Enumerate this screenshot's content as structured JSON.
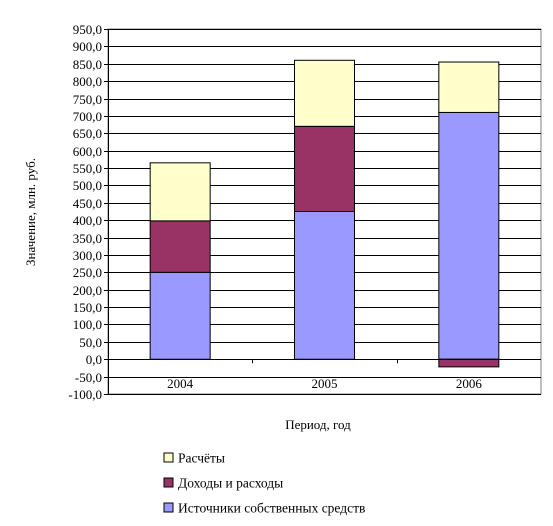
{
  "chart_data": {
    "type": "bar",
    "stacked": true,
    "title": "",
    "xlabel": "Период, год",
    "ylabel": "Значение, млн. руб.",
    "categories": [
      "2004",
      "2005",
      "2006"
    ],
    "ylim": [
      -100,
      950
    ],
    "ytick_step": 50,
    "yticks": [
      "950,0",
      "900,0",
      "850,0",
      "800,0",
      "750,0",
      "700,0",
      "650,0",
      "600,0",
      "550,0",
      "500,0",
      "450,0",
      "400,0",
      "350,0",
      "300,0",
      "250,0",
      "200,0",
      "150,0",
      "100,0",
      "50,0",
      "0,0",
      "-50,0",
      "-100,0"
    ],
    "grid": true,
    "legend_position": "bottom",
    "series": [
      {
        "name": "Источники собственных средств",
        "values": [
          250,
          425,
          710
        ],
        "color": "#9999FF"
      },
      {
        "name": "Доходы и расходы",
        "values": [
          148,
          245,
          -22
        ],
        "color": "#993366"
      },
      {
        "name": "Расчёты",
        "values": [
          167,
          190,
          145
        ],
        "color": "#FFFFCC"
      }
    ],
    "legend_order": [
      2,
      1,
      0
    ]
  }
}
